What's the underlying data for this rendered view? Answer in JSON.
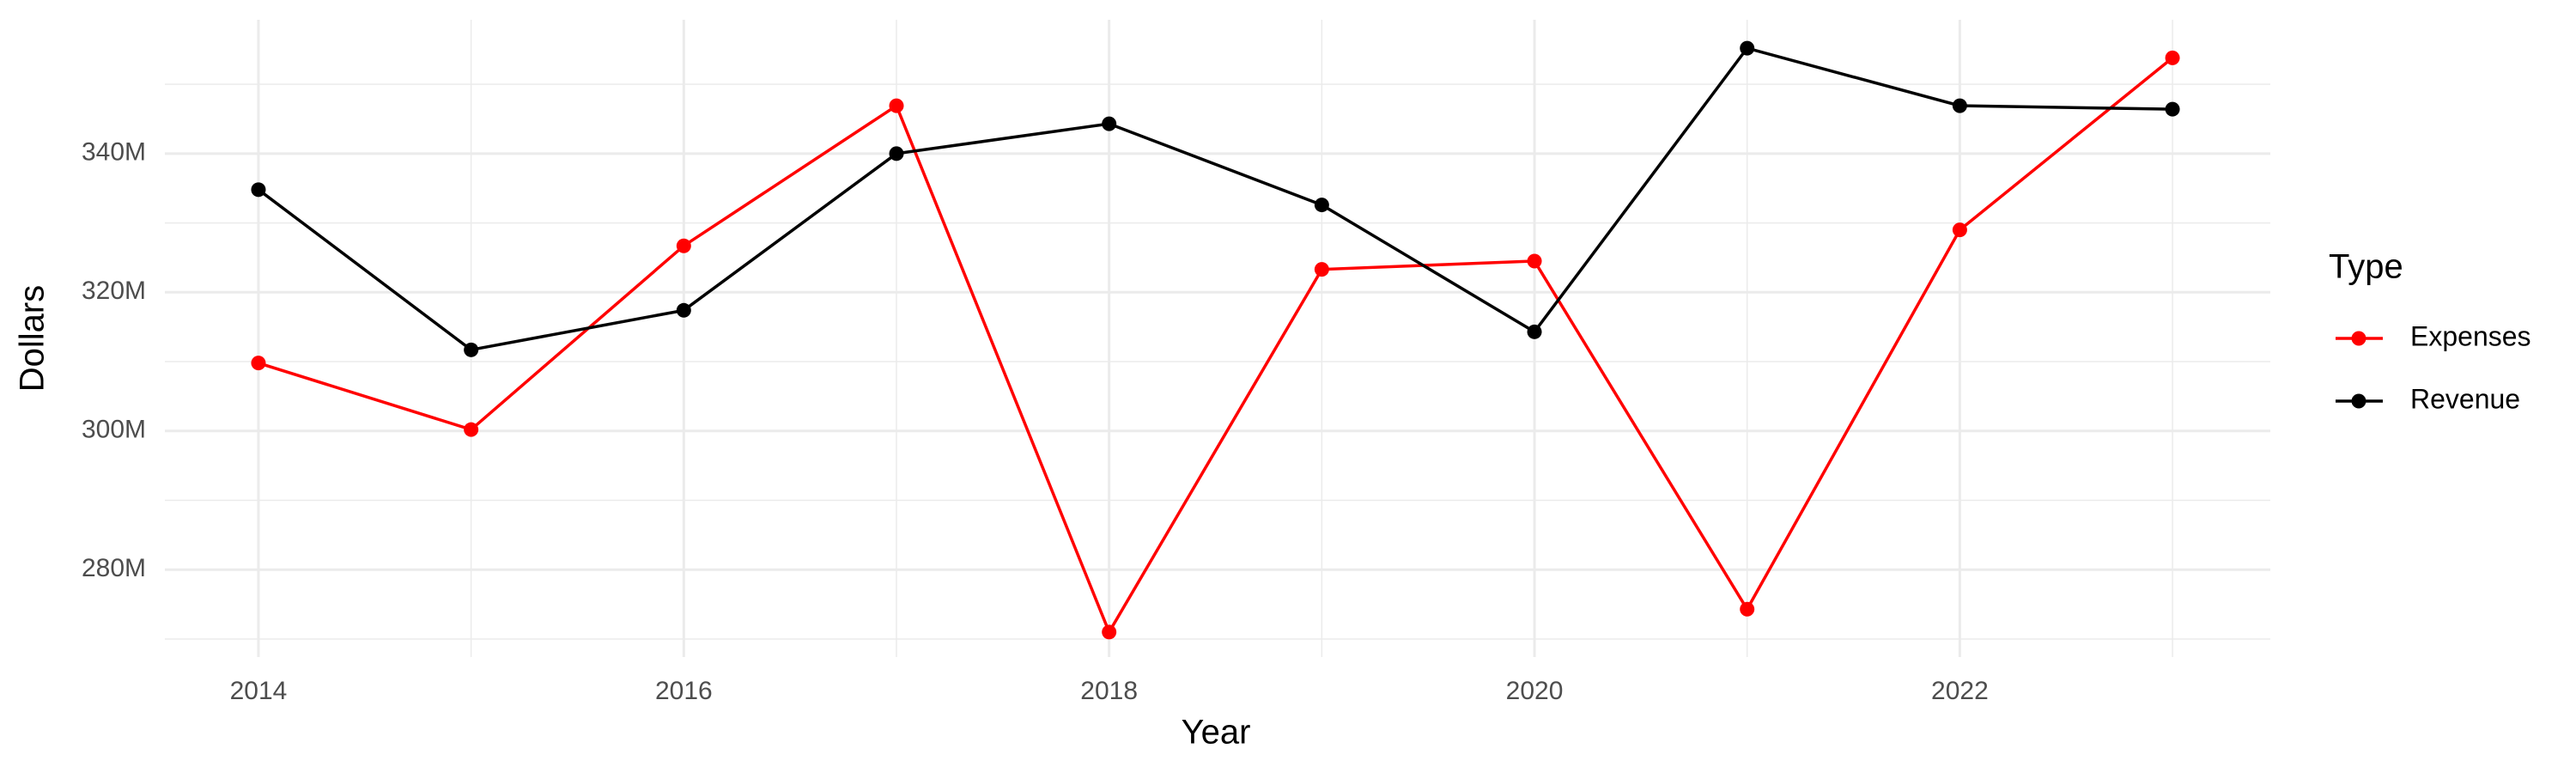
{
  "chart_data": {
    "type": "line",
    "x_label": "Year",
    "y_label": "Dollars",
    "legend_title": "Type",
    "legend_position": "right",
    "grid": true,
    "x": [
      2014,
      2015,
      2016,
      2017,
      2018,
      2019,
      2020,
      2021,
      2022,
      2023
    ],
    "series": [
      {
        "name": "Expenses",
        "color": "#ff0000",
        "values": [
          309800000,
          300200000,
          326700000,
          346900000,
          271000000,
          323300000,
          324500000,
          274300000,
          329000000,
          353800000
        ]
      },
      {
        "name": "Revenue",
        "color": "#000000",
        "values": [
          334800000,
          311700000,
          317400000,
          340000000,
          344300000,
          332600000,
          314300000,
          355200000,
          346900000,
          346400000
        ]
      }
    ],
    "xlim": [
      2013.56,
      2023.46
    ],
    "xticks": [
      2014,
      2016,
      2018,
      2020,
      2022
    ],
    "x_minor_ticks": [
      2015,
      2017,
      2019,
      2021,
      2023
    ],
    "ylim": [
      267400000,
      359300000
    ],
    "yticks": [
      {
        "value": 280000000,
        "label": "280M"
      },
      {
        "value": 300000000,
        "label": "300M"
      },
      {
        "value": 320000000,
        "label": "320M"
      },
      {
        "value": 340000000,
        "label": "340M"
      }
    ],
    "y_minor_ticks": [
      270000000,
      290000000,
      310000000,
      330000000,
      350000000
    ]
  }
}
